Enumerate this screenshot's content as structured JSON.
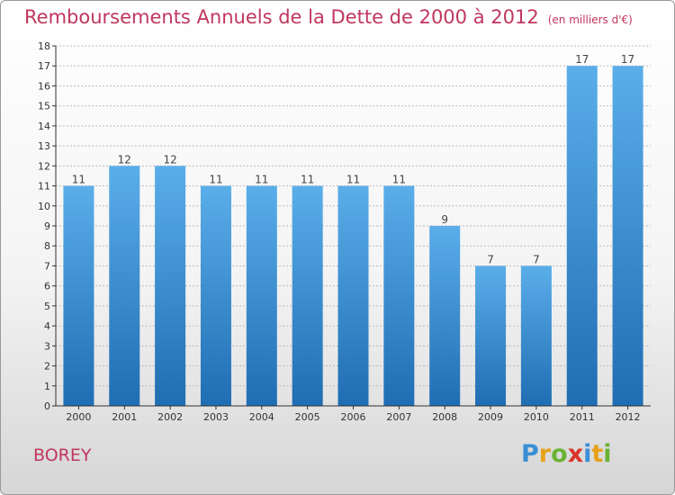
{
  "header": {
    "title": "Remboursements Annuels de la Dette de 2000 à 2012",
    "subtitle": "(en milliers d'€)"
  },
  "footer": {
    "commune": "BOREY",
    "logo_text": "Proxiti",
    "logo_colors": [
      "#3a8fd6",
      "#e8a11c",
      "#6ab233",
      "#d9352b",
      "#3a8fd6",
      "#e8a11c",
      "#6ab233"
    ]
  },
  "colors": {
    "title": "#c0365f",
    "bar_top": "#5aaee9",
    "bar_bottom": "#1f6db3",
    "axis": "#333333",
    "grid": "#bbbbbb"
  },
  "chart_data": {
    "type": "bar",
    "title": "Remboursements Annuels de la Dette de 2000 à 2012",
    "subtitle": "(en milliers d'€)",
    "categories": [
      "2000",
      "2001",
      "2002",
      "2003",
      "2004",
      "2005",
      "2006",
      "2007",
      "2008",
      "2009",
      "2010",
      "2011",
      "2012"
    ],
    "values": [
      11,
      12,
      12,
      11,
      11,
      11,
      11,
      11,
      9,
      7,
      7,
      17,
      17
    ],
    "ylim": [
      0,
      18
    ],
    "yticks": [
      0,
      1,
      2,
      3,
      4,
      5,
      6,
      7,
      8,
      9,
      10,
      11,
      12,
      13,
      14,
      15,
      16,
      17,
      18
    ],
    "grid": true,
    "legend": false
  }
}
